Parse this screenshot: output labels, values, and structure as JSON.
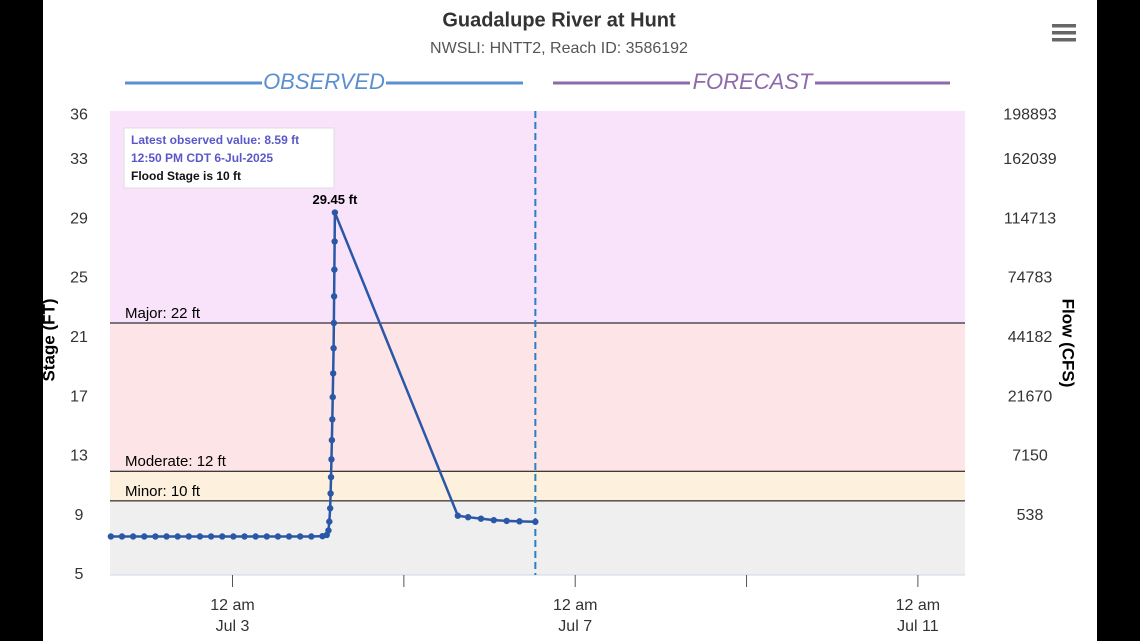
{
  "chart_data": {
    "type": "hydrograph",
    "title": "Guadalupe River at Hunt",
    "subtitle": "NWSLI: HNTT2, Reach ID: 3586192",
    "y_label": "Stage (FT)",
    "y2_label": "Flow (CFS)",
    "sections": [
      {
        "label": "OBSERVED",
        "color": "#5b8fd0"
      },
      {
        "label": "FORECAST",
        "color": "#8e6aab"
      }
    ],
    "xlim": [
      1.57,
      11.55
    ],
    "xticks": [
      {
        "value": 3,
        "label": [
          "12 am",
          "Jul 3"
        ]
      },
      {
        "value": 7,
        "label": [
          "12 am",
          "Jul 7"
        ]
      },
      {
        "value": 11,
        "label": [
          "12 am",
          "Jul 11"
        ]
      }
    ],
    "xminorticks": [
      5,
      9
    ],
    "ylim": [
      5,
      36.3
    ],
    "yticks": [
      5,
      9,
      13,
      17,
      21,
      25,
      29,
      33,
      36
    ],
    "y2ticks": [
      {
        "stage": 9,
        "flow": 538
      },
      {
        "stage": 13,
        "flow": 7150
      },
      {
        "stage": 17,
        "flow": 21670
      },
      {
        "stage": 21,
        "flow": 44182
      },
      {
        "stage": 25,
        "flow": 74783
      },
      {
        "stage": 29,
        "flow": 114713
      },
      {
        "stage": 33,
        "flow": 162039
      },
      {
        "stage": 36,
        "flow": 198893
      }
    ],
    "normal_color": "#efefef",
    "flood_levels": [
      {
        "label": "Minor: 10 ft",
        "value": 10,
        "color": "#fdf0dc"
      },
      {
        "label": "Moderate: 12 ft",
        "value": 12,
        "color": "#fde4e7"
      },
      {
        "label": "Major: 22 ft",
        "value": 22,
        "color": "#f8e3fb"
      }
    ],
    "now": 6.535,
    "series": [
      {
        "name": "Observed",
        "color": "#2a58a6",
        "x": [
          1.58,
          1.71,
          1.84,
          1.97,
          2.1,
          2.23,
          2.36,
          2.49,
          2.62,
          2.75,
          2.88,
          3.01,
          3.14,
          3.27,
          3.4,
          3.53,
          3.66,
          3.79,
          3.92,
          4.05,
          4.1,
          4.12,
          4.13,
          4.14,
          4.145,
          4.15,
          4.155,
          4.16,
          4.165,
          4.17,
          4.175,
          4.18,
          4.183,
          4.186,
          4.189,
          4.192,
          4.195,
          5.63,
          5.75,
          5.9,
          6.05,
          6.2,
          6.35,
          6.535
        ],
        "values": [
          7.6,
          7.6,
          7.6,
          7.6,
          7.6,
          7.6,
          7.6,
          7.6,
          7.6,
          7.6,
          7.6,
          7.6,
          7.6,
          7.6,
          7.6,
          7.6,
          7.6,
          7.6,
          7.6,
          7.62,
          7.7,
          8.0,
          8.6,
          9.5,
          10.5,
          11.6,
          12.8,
          14.1,
          15.5,
          17.0,
          18.6,
          20.3,
          22.0,
          23.8,
          25.6,
          27.5,
          29.45,
          9.0,
          8.9,
          8.8,
          8.7,
          8.65,
          8.62,
          8.59
        ],
        "value_labels": [
          null,
          null,
          null,
          null,
          null,
          null,
          null,
          null,
          null,
          null,
          null,
          null,
          null,
          null,
          null,
          null,
          null,
          null,
          null,
          null,
          null,
          null,
          null,
          null,
          null,
          null,
          null,
          null,
          null,
          null,
          null,
          null,
          null,
          null,
          null,
          null,
          "29.45 ft",
          null,
          null,
          null,
          null,
          null,
          null,
          null
        ]
      }
    ],
    "notes": [
      {
        "text": "Latest observed value: 8.59 ft",
        "color": "#5a58c8"
      },
      {
        "text": "12:50 PM CDT 6-Jul-2025",
        "color": "#5a58c8"
      },
      {
        "text": "Flood Stage is 10 ft",
        "color": "#111111"
      }
    ]
  }
}
